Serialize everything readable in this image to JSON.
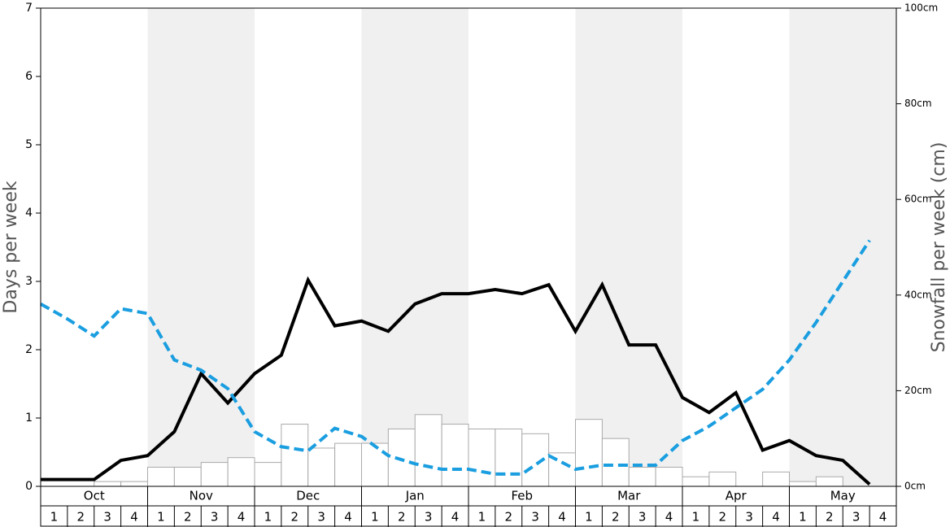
{
  "chart_data": {
    "type": "line",
    "y_label": "Days per week",
    "y2_label": "Snowfall per week (cm)",
    "months": [
      "Oct",
      "Nov",
      "Dec",
      "Jan",
      "Feb",
      "Mar",
      "Apr",
      "May"
    ],
    "categories": [
      "1",
      "2",
      "3",
      "4",
      "1",
      "2",
      "3",
      "4",
      "1",
      "2",
      "3",
      "4",
      "1",
      "2",
      "3",
      "4",
      "1",
      "2",
      "3",
      "4",
      "1",
      "2",
      "3",
      "4",
      "1",
      "2",
      "3",
      "4",
      "1",
      "2",
      "3",
      "4"
    ],
    "ylim": [
      0,
      7
    ],
    "yticks": [
      0,
      1,
      2,
      3,
      4,
      5,
      6,
      7
    ],
    "y2lim": [
      0,
      100
    ],
    "y2ticks": [
      {
        "value": 0,
        "label": "0cm"
      },
      {
        "value": 20,
        "label": "20cm"
      },
      {
        "value": 40,
        "label": "40cm"
      },
      {
        "value": 60,
        "label": "60cm"
      },
      {
        "value": 80,
        "label": "80cm"
      },
      {
        "value": 100,
        "label": "100cm"
      }
    ],
    "band_color": "#f0f0f0",
    "series": [
      {
        "type": "bar",
        "axis": "y2",
        "color": "#ffffff",
        "values": [
          0,
          0,
          1,
          1,
          4,
          4,
          5,
          6,
          5,
          13,
          8,
          9,
          9,
          12,
          15,
          13,
          12,
          12,
          11,
          7,
          14,
          10,
          4,
          4,
          2,
          3,
          0,
          3,
          1,
          2,
          0,
          0
        ]
      },
      {
        "type": "line",
        "color": "#000000",
        "dashed": false,
        "values": [
          0.1,
          0.1,
          0.1,
          0.38,
          0.45,
          0.8,
          1.65,
          1.22,
          1.65,
          1.92,
          3.02,
          2.35,
          2.42,
          2.27,
          2.67,
          2.82,
          2.82,
          2.88,
          2.82,
          2.95,
          2.27,
          2.95,
          2.07,
          2.07,
          1.3,
          1.08,
          1.37,
          0.53,
          0.67,
          0.45,
          0.38,
          0.03
        ]
      },
      {
        "type": "line",
        "color": "#1a9ee0",
        "dashed": true,
        "values": [
          2.67,
          2.45,
          2.2,
          2.6,
          2.53,
          1.85,
          1.7,
          1.43,
          0.8,
          0.58,
          0.52,
          0.85,
          0.73,
          0.45,
          0.33,
          0.25,
          0.25,
          0.18,
          0.18,
          0.45,
          0.25,
          0.31,
          0.31,
          0.31,
          0.67,
          0.88,
          1.15,
          1.42,
          1.85,
          2.4,
          3.0,
          3.6
        ]
      }
    ]
  }
}
